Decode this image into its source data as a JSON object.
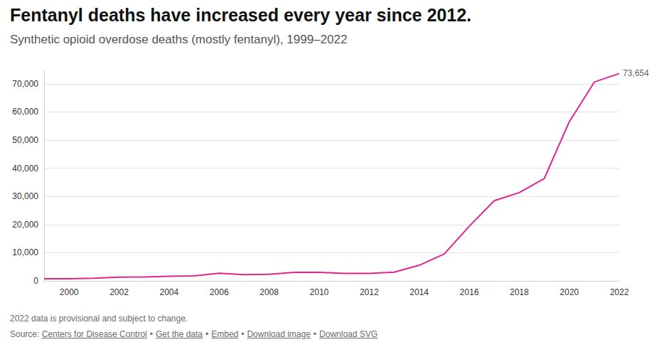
{
  "chart_data": {
    "type": "line",
    "title": "Fentanyl deaths have increased every year since 2012.",
    "subtitle": "Synthetic opioid overdose deaths (mostly fentanyl), 1999–2022",
    "note": "2022 data is provisional and subject to change.",
    "source": {
      "label": "Source:",
      "separator": "•",
      "links": [
        "Centers for Disease Control",
        "Get the data",
        "Embed",
        "Download image",
        "Download SVG"
      ]
    },
    "x": [
      1999,
      2000,
      2001,
      2002,
      2003,
      2004,
      2005,
      2006,
      2007,
      2008,
      2009,
      2010,
      2011,
      2012,
      2013,
      2014,
      2015,
      2016,
      2017,
      2018,
      2019,
      2020,
      2021,
      2022
    ],
    "values": [
      730,
      782,
      957,
      1295,
      1400,
      1664,
      1742,
      2707,
      2213,
      2306,
      3007,
      3007,
      2666,
      2628,
      3105,
      5544,
      9580,
      19413,
      28466,
      31335,
      36359,
      56516,
      70601,
      73654
    ],
    "color": "#e2238d",
    "xlim": [
      1999,
      2022
    ],
    "xticks": [
      2000,
      2002,
      2004,
      2006,
      2008,
      2010,
      2012,
      2014,
      2016,
      2018,
      2020,
      2022
    ],
    "ylim": [
      0,
      75000
    ],
    "yticks": [
      0,
      {
        "value": 10000,
        "label": "10,000"
      },
      {
        "value": 20000,
        "label": "20,000"
      },
      {
        "value": 30000,
        "label": "30,000"
      },
      {
        "value": 40000,
        "label": "40,000"
      },
      {
        "value": 50000,
        "label": "50,000"
      },
      {
        "value": 60000,
        "label": "60,000"
      },
      {
        "value": 70000,
        "label": "70,000"
      }
    ],
    "grid": true,
    "annotations": [
      {
        "text": "73,654",
        "x": 2022,
        "y": 73654
      }
    ]
  }
}
